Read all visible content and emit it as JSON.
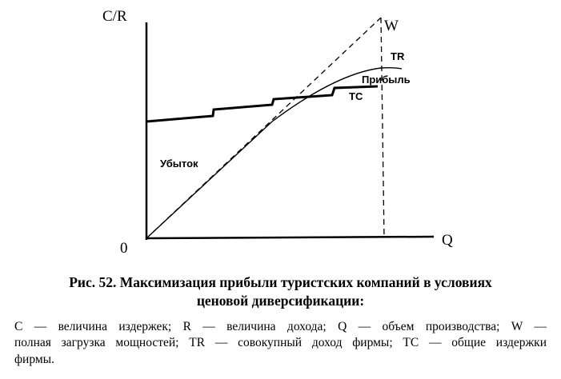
{
  "diagram": {
    "axis_y_label": "C/R",
    "axis_x_label": "Q",
    "origin_label": "0",
    "w_label": "W",
    "tr_label": "TR",
    "profit_label": "Прибыль",
    "tc_label": "TC",
    "loss_label": "Убыток"
  },
  "caption": {
    "number": "Рис. 52.",
    "title_line_1": "Максимизация прибыли туристских компаний в условиях",
    "title_line_2": "ценовой диверсификации:"
  },
  "legend": {
    "lines": [
      "C — величина издержек; R — величина дохода; Q — объем производства; W —",
      "полная загрузка мощностей; TR — совокупный доход фирмы; TC — общие издержки",
      "фирмы."
    ]
  }
}
